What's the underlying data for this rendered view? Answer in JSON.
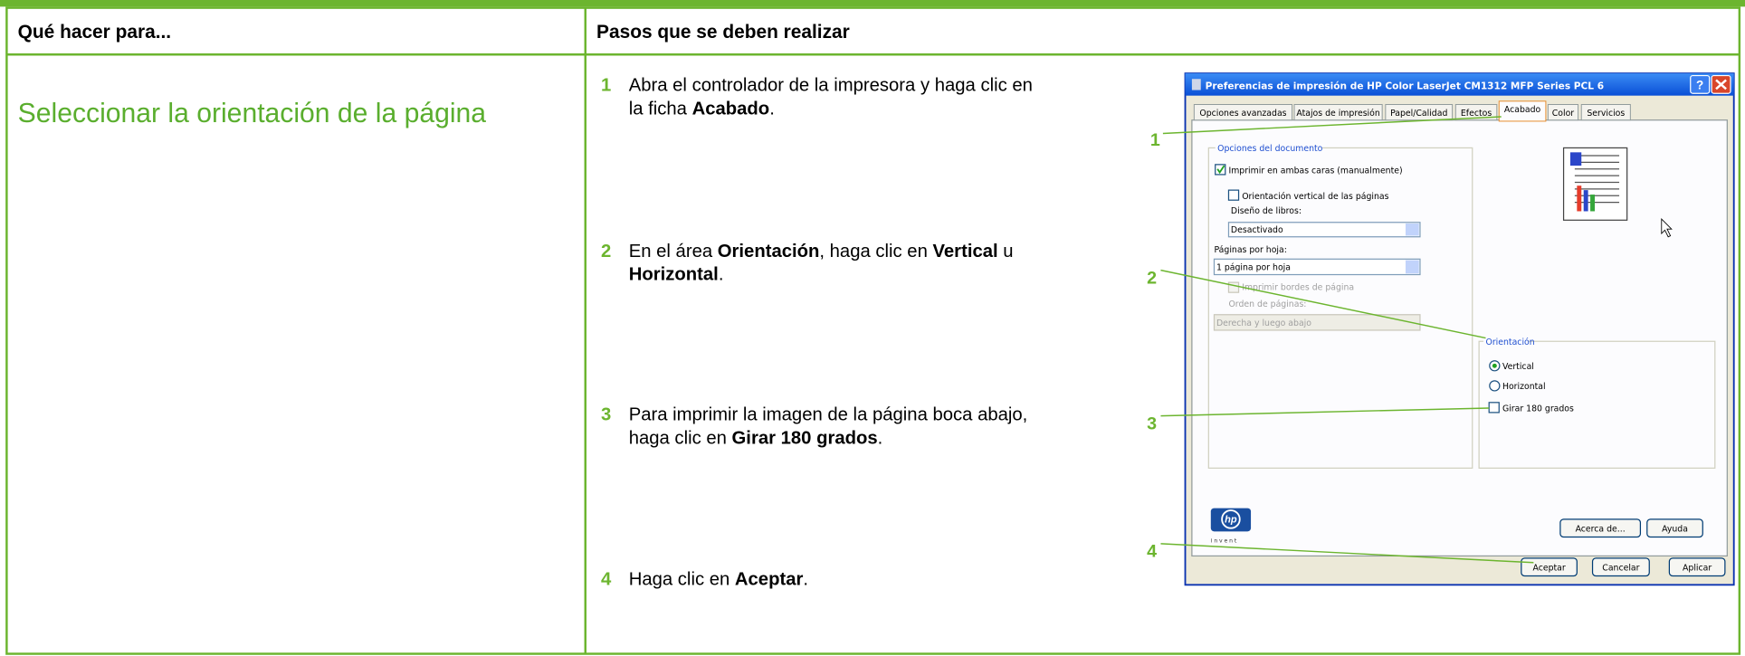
{
  "header": {
    "col1": "Qué hacer para...",
    "col2": "Pasos que se deben realizar"
  },
  "task": "Seleccionar la orientación de la página",
  "steps": [
    {
      "number": "1",
      "lines": [
        [
          "Abra el controlador de la impresora y haga clic en"
        ],
        [
          "la ficha ",
          "Acabado",
          "."
        ]
      ]
    },
    {
      "number": "2",
      "lines": [
        [
          "En el área ",
          "Orientación",
          ", haga clic en ",
          "Vertical",
          " u"
        ],
        [
          "Horizontal",
          "."
        ]
      ]
    },
    {
      "number": "3",
      "lines": [
        [
          "Para imprimir la imagen de la página boca abajo,"
        ],
        [
          "haga clic en ",
          "Girar 180 grados",
          "."
        ]
      ]
    },
    {
      "number": "4",
      "lines": [
        [
          "Haga clic en ",
          "Aceptar",
          "."
        ]
      ]
    }
  ],
  "dialog": {
    "title": "Preferencias de impresión de HP Color LaserJet CM1312 MFP Series PCL 6",
    "tabs": [
      "Opciones avanzadas",
      "Atajos de impresión",
      "Papel/Calidad",
      "Efectos",
      "Acabado",
      "Color",
      "Servicios"
    ],
    "document_options": {
      "label": "Opciones del documento",
      "duplex": "Imprimir en ambas caras (manualmente)",
      "vertical_pages": "Orientación vertical de las páginas",
      "booklet_label": "Diseño de libros:",
      "booklet_value": "Desactivado",
      "pages_per_sheet_label": "Páginas por hoja:",
      "pages_per_sheet_value": "1 página por hoja",
      "print_borders": "Imprimir bordes de página",
      "page_order_label": "Orden de páginas:",
      "page_order_value": "Derecha y luego abajo"
    },
    "orientation": {
      "label": "Orientación",
      "vertical": "Vertical",
      "horizontal": "Horizontal",
      "rotate": "Girar 180 grados"
    },
    "logo": "invent",
    "buttons": {
      "about": "Acerca de...",
      "help": "Ayuda",
      "ok": "Aceptar",
      "cancel": "Cancelar",
      "apply": "Aplicar"
    }
  },
  "callouts": [
    "1",
    "2",
    "3",
    "4"
  ]
}
